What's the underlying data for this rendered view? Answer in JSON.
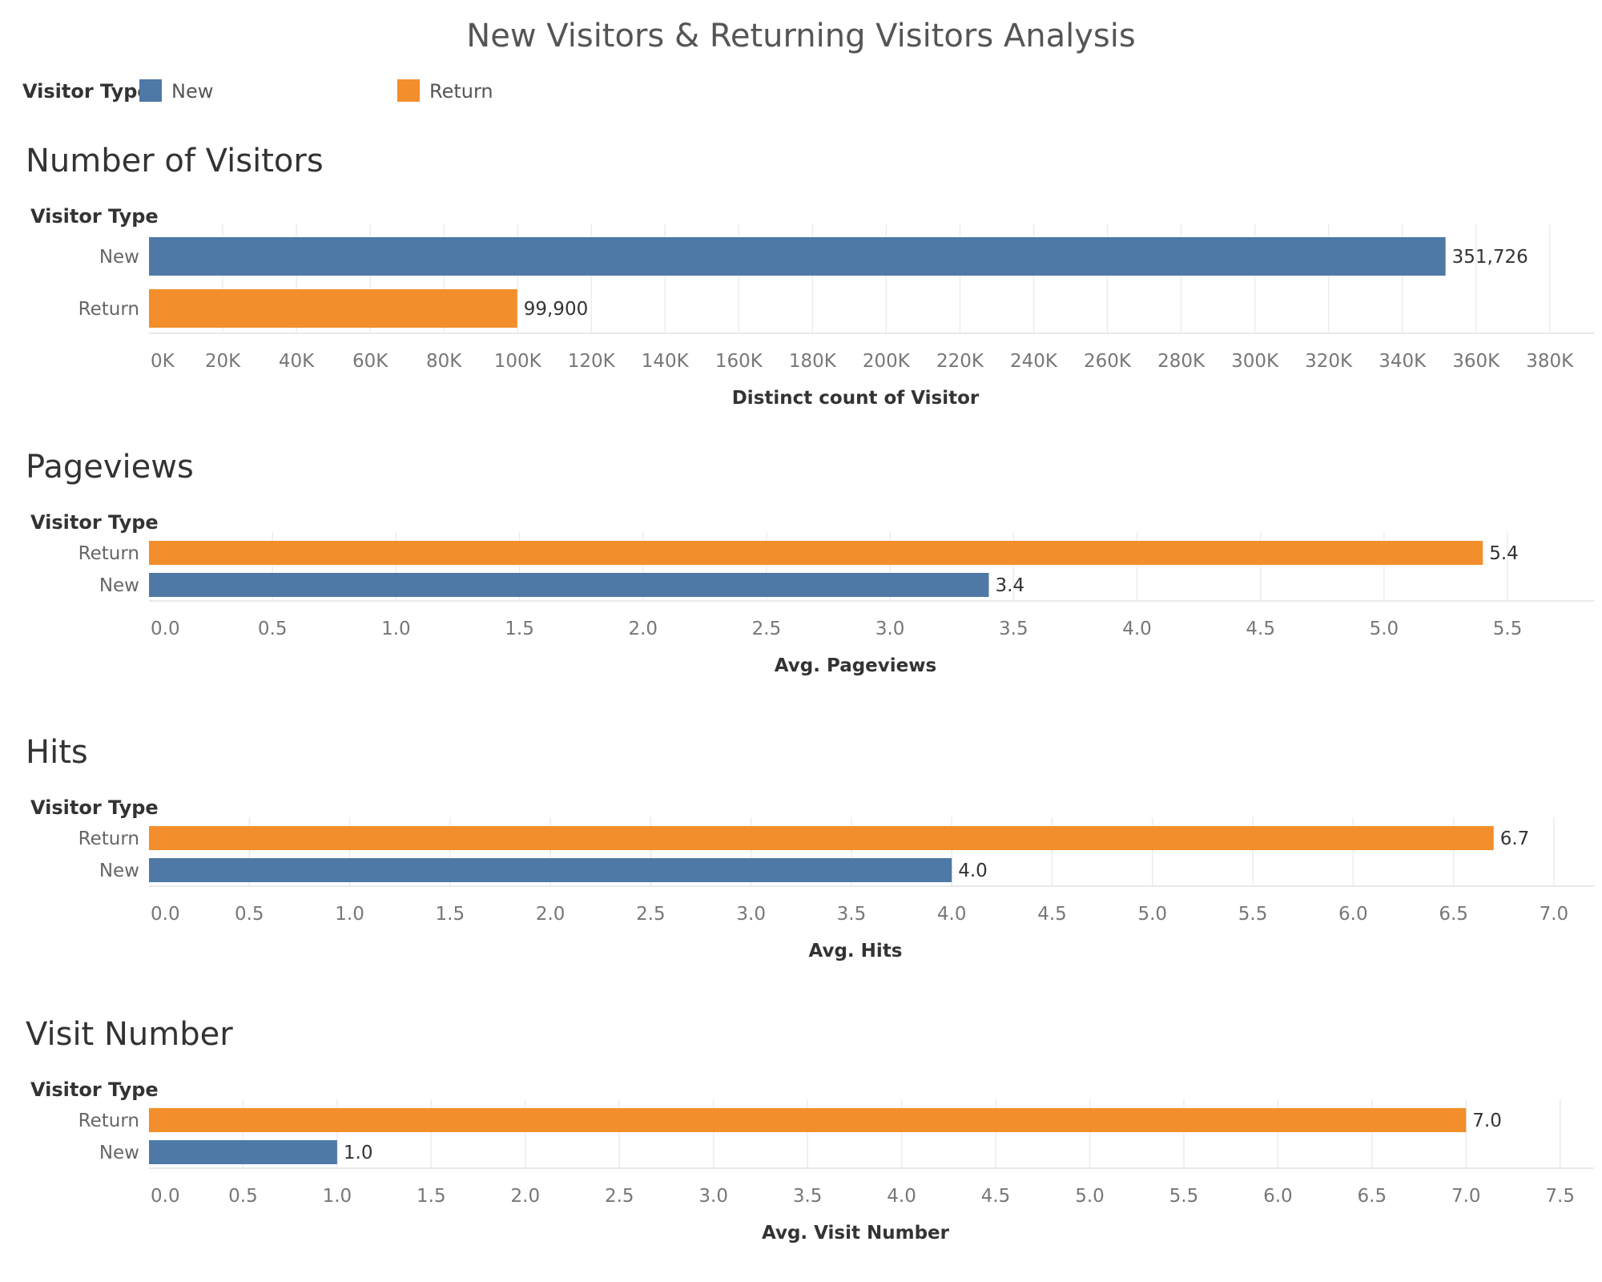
{
  "title": "New Visitors & Returning Visitors Analysis",
  "legend": {
    "title": "Visitor Type",
    "items": [
      {
        "label": "New",
        "color": "#4e79a7"
      },
      {
        "label": "Return",
        "color": "#f28e2b"
      }
    ]
  },
  "colors": {
    "New": "#4e79a7",
    "Return": "#f28e2b"
  },
  "chart_data": [
    {
      "type": "bar",
      "orientation": "horizontal",
      "title": "Number of Visitors",
      "category_label": "Visitor Type",
      "xlabel": "Distinct count of Visitor",
      "categories": [
        "New",
        "Return"
      ],
      "values": [
        351726,
        99900
      ],
      "value_labels": [
        "351,726",
        "99,900"
      ],
      "ticks": [
        0,
        20000,
        40000,
        60000,
        80000,
        100000,
        120000,
        140000,
        160000,
        180000,
        200000,
        220000,
        240000,
        260000,
        280000,
        300000,
        320000,
        340000,
        360000,
        380000
      ],
      "tick_labels": [
        "0K",
        "20K",
        "40K",
        "60K",
        "80K",
        "100K",
        "120K",
        "140K",
        "160K",
        "180K",
        "200K",
        "220K",
        "240K",
        "260K",
        "280K",
        "300K",
        "320K",
        "340K",
        "360K",
        "380K"
      ],
      "xlim": [
        0,
        392000
      ],
      "grid": true
    },
    {
      "type": "bar",
      "orientation": "horizontal",
      "title": "Pageviews",
      "category_label": "Visitor Type",
      "xlabel": "Avg. Pageviews",
      "categories": [
        "Return",
        "New"
      ],
      "values": [
        5.4,
        3.4
      ],
      "value_labels": [
        "5.4",
        "3.4"
      ],
      "ticks": [
        0,
        0.5,
        1,
        1.5,
        2,
        2.5,
        3,
        3.5,
        4,
        4.5,
        5,
        5.5
      ],
      "tick_labels": [
        "0.0",
        "0.5",
        "1.0",
        "1.5",
        "2.0",
        "2.5",
        "3.0",
        "3.5",
        "4.0",
        "4.5",
        "5.0",
        "5.5"
      ],
      "xlim": [
        0,
        5.85
      ],
      "grid": true
    },
    {
      "type": "bar",
      "orientation": "horizontal",
      "title": "Hits",
      "category_label": "Visitor Type",
      "xlabel": "Avg. Hits",
      "categories": [
        "Return",
        "New"
      ],
      "values": [
        6.7,
        4.0
      ],
      "value_labels": [
        "6.7",
        "4.0"
      ],
      "ticks": [
        0,
        0.5,
        1,
        1.5,
        2,
        2.5,
        3,
        3.5,
        4,
        4.5,
        5,
        5.5,
        6,
        6.5,
        7
      ],
      "tick_labels": [
        "0.0",
        "0.5",
        "1.0",
        "1.5",
        "2.0",
        "2.5",
        "3.0",
        "3.5",
        "4.0",
        "4.5",
        "5.0",
        "5.5",
        "6.0",
        "6.5",
        "7.0"
      ],
      "xlim": [
        0,
        7.2
      ],
      "grid": true
    },
    {
      "type": "bar",
      "orientation": "horizontal",
      "title": "Visit Number",
      "category_label": "Visitor Type",
      "xlabel": "Avg. Visit Number",
      "categories": [
        "Return",
        "New"
      ],
      "values": [
        7.0,
        1.0
      ],
      "value_labels": [
        "7.0",
        "1.0"
      ],
      "ticks": [
        0,
        0.5,
        1,
        1.5,
        2,
        2.5,
        3,
        3.5,
        4,
        4.5,
        5,
        5.5,
        6,
        6.5,
        7,
        7.5
      ],
      "tick_labels": [
        "0.0",
        "0.5",
        "1.0",
        "1.5",
        "2.0",
        "2.5",
        "3.0",
        "3.5",
        "4.0",
        "4.5",
        "5.0",
        "5.5",
        "6.0",
        "6.5",
        "7.0",
        "7.5"
      ],
      "xlim": [
        0,
        7.68
      ],
      "grid": true
    }
  ]
}
